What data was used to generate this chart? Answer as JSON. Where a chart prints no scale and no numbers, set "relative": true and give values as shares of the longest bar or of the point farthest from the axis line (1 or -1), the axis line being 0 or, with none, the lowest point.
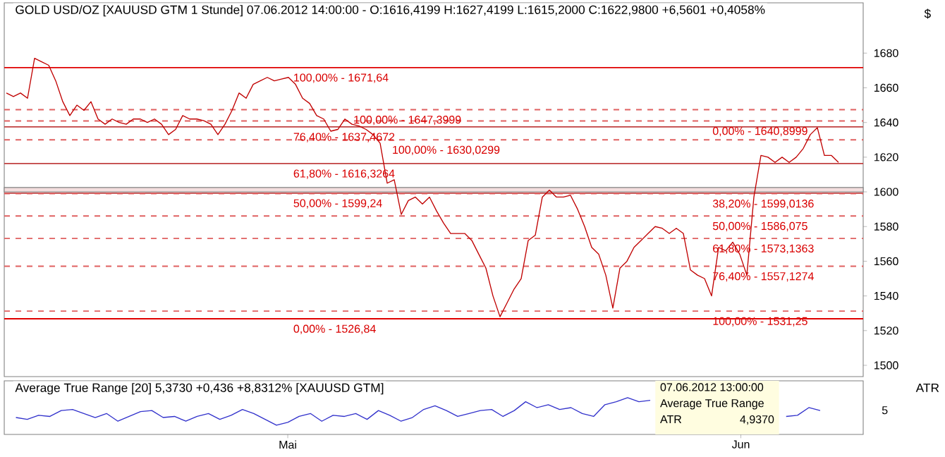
{
  "chart_data": [
    {
      "type": "line",
      "title": "GOLD USD/OZ [XAUUSD GTM  1 Stunde] 07.06.2012 14:00:00 - O:1616,4199 H:1627,4199 L:1615,2000 C:1622,9800 +6,5601 +0,4058%",
      "ylabel": "$",
      "categories": [
        null,
        null,
        null,
        null,
        null,
        null,
        null,
        null,
        null,
        null,
        null,
        null,
        null,
        null,
        null,
        null,
        null,
        null,
        null,
        null,
        null,
        null,
        null,
        null,
        null,
        null,
        null,
        null,
        null,
        null,
        null,
        null,
        null,
        null,
        null,
        null,
        null,
        null,
        null,
        null,
        null,
        null,
        null,
        null,
        null,
        null,
        null,
        null,
        null,
        null,
        null,
        null,
        null,
        null,
        null,
        null,
        null,
        null,
        null,
        null,
        null,
        null,
        null,
        null,
        null,
        null,
        null,
        null,
        null,
        null,
        null,
        null,
        null,
        null,
        null,
        null,
        null,
        null,
        null,
        null,
        null,
        null,
        null,
        null,
        null,
        null,
        null,
        null,
        null,
        null,
        null,
        null,
        null,
        null,
        null,
        null,
        null,
        null,
        null,
        null,
        null,
        null,
        null,
        null,
        null,
        null,
        null,
        null,
        null,
        null,
        null,
        null,
        null,
        null,
        null,
        null,
        null,
        null,
        null
      ],
      "tick_labels": "y",
      "ylim": [
        1493.5,
        1709
      ],
      "yticks": [
        1500,
        1520,
        1540,
        1560,
        1580,
        1600,
        1620,
        1640,
        1660,
        1680
      ],
      "grid": false,
      "series": [
        {
          "color": "#c00000",
          "values": [
            1657,
            1655,
            1657,
            1654,
            1677,
            1675,
            1673,
            1664,
            1652,
            1644,
            1650,
            1647,
            1652,
            1642,
            1639,
            1642,
            1640,
            1639,
            1642,
            1642,
            1640,
            1642,
            1639,
            1633,
            1636,
            1644,
            1642,
            1642,
            1641,
            1639,
            1633,
            1639,
            1647,
            1657,
            1654,
            1662,
            1664,
            1666,
            1664,
            1665,
            1666,
            1662,
            1654,
            1651,
            1644,
            1642,
            1635,
            1636,
            1642,
            1639,
            1638,
            1636,
            1633,
            1628,
            1605,
            1607,
            1587,
            1595,
            1597,
            1593,
            1597,
            1589,
            1582,
            1576,
            1576,
            1576,
            1572,
            1564,
            1556,
            1540,
            1528,
            1536,
            1544,
            1550,
            1572,
            1575,
            1597,
            1601,
            1597,
            1597,
            1598,
            1590,
            1580,
            1568,
            1564,
            1552,
            1533,
            1556,
            1560,
            1568,
            1572,
            1576,
            1580,
            1579,
            1576,
            1579,
            1576,
            1555,
            1552,
            1550,
            1540,
            1568,
            1566,
            1571,
            1564,
            1552,
            1597,
            1621,
            1620,
            1617,
            1620,
            1617,
            1620,
            1625,
            1633,
            1637,
            1621,
            1621,
            1617
          ]
        }
      ],
      "ref_lines": [
        {
          "axis": "y",
          "value": 1671.64,
          "color": "#e00000",
          "line_style": "solid"
        },
        {
          "axis": "y",
          "value": 1647.3999,
          "color": "#e06060",
          "line_style": "dashed"
        },
        {
          "axis": "y",
          "value": 1637.4672,
          "color": "#c04040",
          "line_style": "solid"
        },
        {
          "axis": "y",
          "value": 1630.0299,
          "color": "#e06060",
          "line_style": "dashed"
        },
        {
          "axis": "y",
          "value": 1616.3264,
          "color": "#c04040",
          "line_style": "solid"
        },
        {
          "axis": "y",
          "value": 1599.24,
          "color": "#c04040",
          "line_style": "solid"
        },
        {
          "axis": "y",
          "value": 1526.84,
          "color": "#e00000",
          "line_style": "solid"
        },
        {
          "axis": "y",
          "value": 1640.8999,
          "color": "#e06060",
          "line_style": "dashed"
        },
        {
          "axis": "y",
          "value": 1599.0136,
          "color": "#e06060",
          "line_style": "dashed"
        },
        {
          "axis": "y",
          "value": 1586.075,
          "color": "#e06060",
          "line_style": "dashed"
        },
        {
          "axis": "y",
          "value": 1573.1363,
          "color": "#e06060",
          "line_style": "dashed"
        },
        {
          "axis": "y",
          "value": 1557.1274,
          "color": "#e06060",
          "line_style": "dashed"
        },
        {
          "axis": "y",
          "value": 1531.25,
          "color": "#e06060",
          "line_style": "dashed"
        }
      ],
      "bands": [
        {
          "axis": "y",
          "from": 1600,
          "to": 1602.5,
          "color": "#f4dede"
        }
      ],
      "annotations": [
        {
          "text": "100,00% - 1671,64",
          "y": 1671.64
        },
        {
          "text": "100,00% - 1647,3999",
          "y": 1647.3999
        },
        {
          "text": "76,40% - 1637,4672",
          "y": 1637.4672
        },
        {
          "text": "100,00% - 1630,0299",
          "y": 1630.0299
        },
        {
          "text": "61,80% - 1616,3264",
          "y": 1616.3264
        },
        {
          "text": "50,00% - 1599,24",
          "y": 1599.24
        },
        {
          "text": "0,00% - 1526,84",
          "y": 1526.84
        },
        {
          "text": "0,00% - 1640,8999",
          "y": 1640.8999
        },
        {
          "text": "38,20% - 1599,0136",
          "y": 1599.0136
        },
        {
          "text": "50,00% - 1586,075",
          "y": 1586.075
        },
        {
          "text": "61,80% - 1573,1363",
          "y": 1573.1363
        },
        {
          "text": "76,40% - 1557,1274",
          "y": 1557.1274
        },
        {
          "text": "100,00% - 1531,25",
          "y": 1531.25
        }
      ]
    },
    {
      "type": "line",
      "title": "Average True Range [20] 5,3730 +0,436 +8,8312% [XAUUSD GTM]",
      "ylabel": "ATR",
      "relative": true,
      "categories": [
        null,
        null,
        null,
        null,
        null,
        null,
        null,
        null,
        null,
        null,
        null,
        null,
        null,
        null,
        null,
        null,
        null,
        null,
        null,
        null,
        null,
        null,
        null,
        null,
        "Mai",
        null,
        null,
        null,
        null,
        null,
        null,
        null,
        null,
        null,
        null,
        null,
        null,
        null,
        null,
        null,
        null,
        null,
        null,
        null,
        null,
        null,
        null,
        null,
        null,
        null,
        null,
        null,
        null,
        null,
        null,
        null,
        null,
        null,
        null,
        null,
        null,
        null,
        null,
        null,
        "Jun",
        null,
        null,
        null,
        null,
        null,
        null,
        null
      ],
      "tick_labels": "x",
      "grid": false,
      "series": [
        {
          "color": "#3333cc",
          "values": [
            0.46,
            0.41,
            0.52,
            0.49,
            0.65,
            0.68,
            0.57,
            0.46,
            0.57,
            0.36,
            0.49,
            0.62,
            0.65,
            0.46,
            0.49,
            0.36,
            0.49,
            0.57,
            0.41,
            0.52,
            0.68,
            0.57,
            0.41,
            0.25,
            0.33,
            0.49,
            0.57,
            0.36,
            0.52,
            0.49,
            0.57,
            0.41,
            0.65,
            0.52,
            0.36,
            0.46,
            0.68,
            0.78,
            0.65,
            0.49,
            0.57,
            0.65,
            0.68,
            0.49,
            0.65,
            0.89,
            0.73,
            0.81,
            0.68,
            0.73,
            0.57,
            0.49,
            0.81,
            0.89,
            1,
            0.89,
            0.93,
            null,
            null,
            null,
            null,
            null,
            null,
            null,
            null,
            null,
            null,
            null,
            0.49,
            0.52,
            0.73,
            0.65
          ]
        }
      ],
      "annotations": [
        "07.06.2012 13:00:00",
        "Average True Range",
        "ATR",
        "4,9370",
        "5"
      ]
    }
  ]
}
